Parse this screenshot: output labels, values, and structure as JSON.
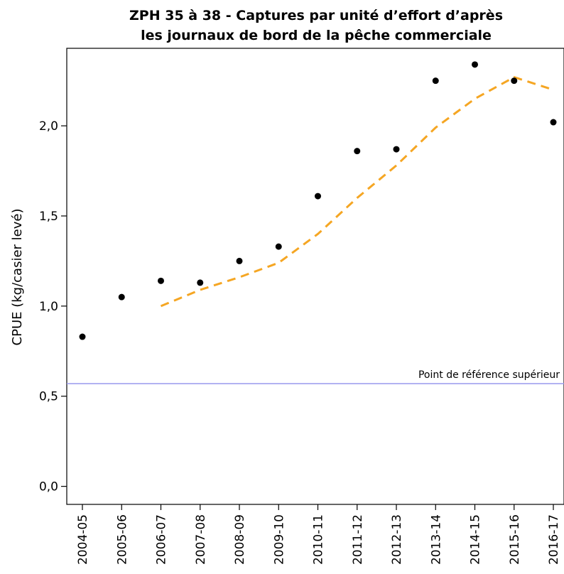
{
  "chart_data": {
    "type": "scatter",
    "title_line1": "ZPH 35 à 38 - Captures par unité d’effort d’après",
    "title_line2": "les journaux de bord de la pêche commerciale",
    "xlabel": "",
    "ylabel": "CPUE (kg/casier levé)",
    "categories": [
      "2004-05",
      "2005-06",
      "2006-07",
      "2007-08",
      "2008-09",
      "2009-10",
      "2010-11",
      "2011-12",
      "2012-13",
      "2013-14",
      "2014-15",
      "2015-16",
      "2016-17"
    ],
    "y_ticks": [
      0.0,
      0.5,
      1.0,
      1.5,
      2.0
    ],
    "y_tick_labels": [
      "0,0",
      "0,5",
      "1,0",
      "1,5",
      "2,0"
    ],
    "ylim": [
      -0.1,
      2.43
    ],
    "grid": false,
    "series": [
      {
        "kind": "points",
        "values": [
          0.83,
          1.05,
          1.14,
          1.13,
          1.25,
          1.33,
          1.61,
          1.86,
          1.87,
          2.25,
          2.34,
          2.25,
          2.02
        ],
        "color": "#000000"
      },
      {
        "kind": "dashed-line",
        "values": [
          null,
          null,
          1.0,
          1.09,
          1.16,
          1.24,
          1.4,
          1.6,
          1.78,
          1.99,
          2.15,
          2.27,
          2.2
        ],
        "color": "#F5A623"
      }
    ],
    "reference_line": {
      "value": 0.57,
      "label": "Point de référence supérieur",
      "color": "#9999EE"
    }
  }
}
